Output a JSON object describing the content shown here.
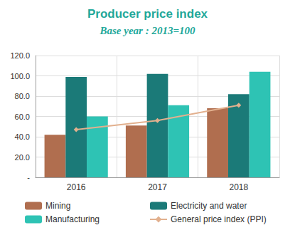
{
  "chart_data": {
    "type": "bar",
    "title": "Producer price index",
    "subtitle": "Base year : 2013=100",
    "categories": [
      "2016",
      "2017",
      "2018"
    ],
    "series": [
      {
        "name": "Mining",
        "type": "bar",
        "color": "#b06e4f",
        "values": [
          42,
          51,
          68
        ]
      },
      {
        "name": "Electricity and water",
        "type": "bar",
        "color": "#1b7a78",
        "values": [
          99,
          102,
          82
        ]
      },
      {
        "name": "Manufacturing",
        "type": "bar",
        "color": "#2ec3b4",
        "values": [
          60,
          71,
          104
        ]
      },
      {
        "name": "General price index (PPI)",
        "type": "line",
        "color": "#e2b08e",
        "marker": "diamond",
        "line_style": "solid",
        "values": [
          47,
          56,
          71
        ]
      }
    ],
    "ylim": [
      0,
      120
    ],
    "yticks": [
      {
        "value": 0,
        "label": "-"
      },
      {
        "value": 20,
        "label": "20.0"
      },
      {
        "value": 40,
        "label": "40.0"
      },
      {
        "value": 60,
        "label": "60.0"
      },
      {
        "value": 80,
        "label": "80.0"
      },
      {
        "value": 100,
        "label": "100.0"
      },
      {
        "value": 120,
        "label": "120.0"
      }
    ],
    "grid": true,
    "legend": "bottom"
  }
}
